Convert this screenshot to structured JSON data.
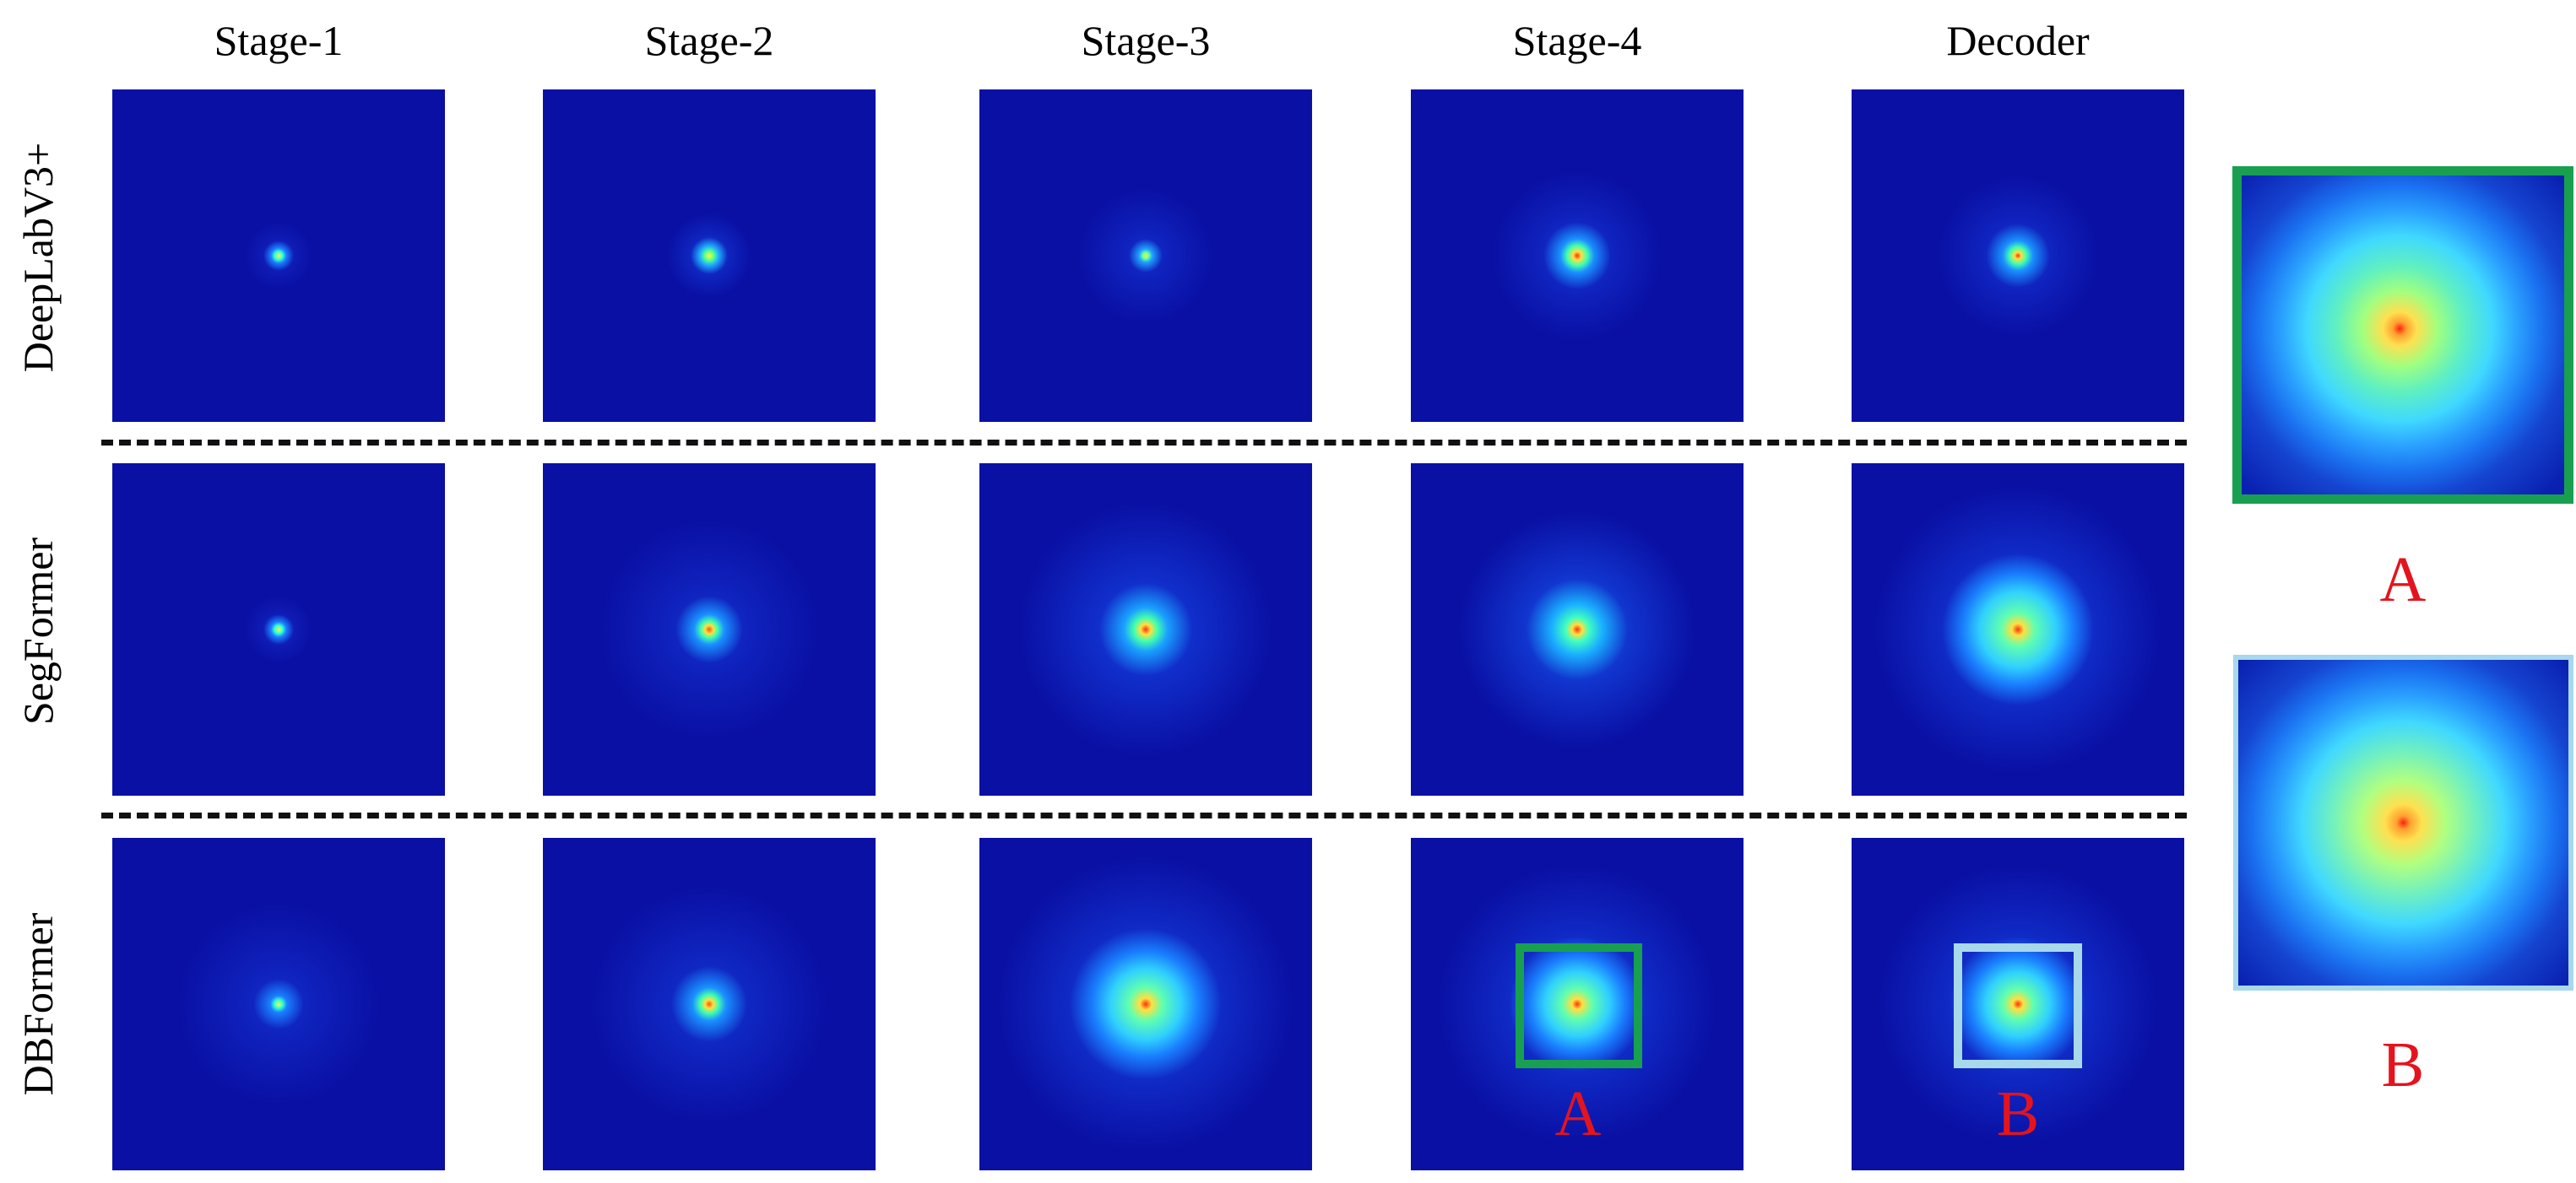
{
  "columns": [
    "Stage-1",
    "Stage-2",
    "Stage-3",
    "Stage-4",
    "Decoder"
  ],
  "rows": [
    "DeepLabV3+",
    "SegFormer",
    "DBFormer"
  ],
  "annotations": {
    "a": "A",
    "b": "B"
  },
  "colors": {
    "background_blue": "#0a10a4",
    "box_a": "#18a050",
    "box_b": "#a8d8ec",
    "label_red": "#e3141e"
  }
}
